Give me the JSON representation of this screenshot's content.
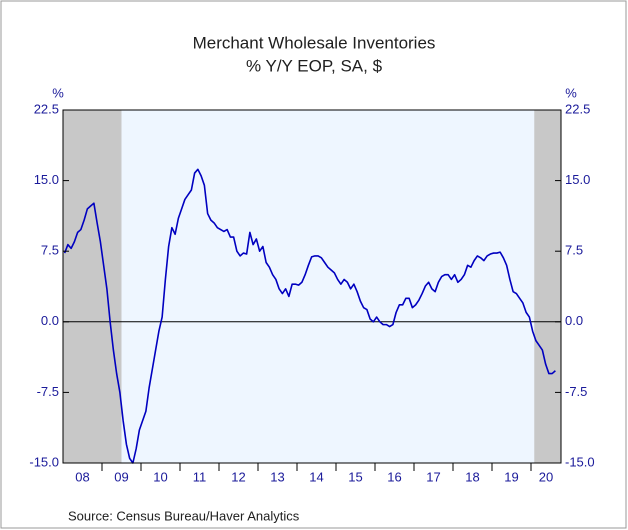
{
  "chart_data": {
    "type": "line",
    "title": "Merchant Wholesale Inventories",
    "subtitle": "% Y/Y   EOP, SA, $",
    "y_label": "%",
    "y2_label": "%",
    "source": "Source:  Census Bureau/Haver Analytics",
    "x_labels": [
      "08",
      "09",
      "10",
      "11",
      "12",
      "13",
      "14",
      "15",
      "16",
      "17",
      "18",
      "19",
      "20"
    ],
    "ylim": [
      -15,
      22.5
    ],
    "yticks": [
      22.5,
      {
        "value": 15,
        "label": "15.0"
      },
      7.5,
      {
        "value": 0,
        "label": "0.0"
      },
      -7.5,
      {
        "value": -15,
        "label": "-15.0"
      }
    ],
    "y2lim": [
      -15,
      22.5
    ],
    "y2ticks": [
      22.5,
      {
        "value": 15,
        "label": "15.0"
      },
      7.5,
      {
        "value": 0,
        "label": "0.0"
      },
      -7.5,
      {
        "value": -15,
        "label": "-15.0"
      }
    ],
    "series": [
      {
        "color": "#0000c0",
        "values": [
          7.3,
          8.2,
          7.8,
          8.5,
          9.5,
          9.8,
          10.8,
          12.0,
          12.3,
          12.6,
          10.5,
          8.5,
          6.0,
          3.5,
          0.0,
          -3.0,
          -5.5,
          -7.5,
          -10.5,
          -13.0,
          -14.5,
          -15.0,
          -13.5,
          -11.5,
          -10.5,
          -9.5,
          -7.0,
          -5.0,
          -3.0,
          -1.0,
          0.5,
          4.5,
          8.0,
          10.0,
          9.3,
          11.0,
          12.0,
          13.0,
          13.5,
          14.0,
          15.8,
          16.2,
          15.5,
          14.5,
          11.5,
          10.8,
          10.5,
          10.0,
          9.8,
          9.6,
          9.8,
          9.0,
          9.0,
          7.5,
          7.0,
          7.3,
          7.2,
          9.5,
          8.2,
          8.8,
          7.5,
          8.0,
          6.3,
          5.8,
          5.0,
          4.5,
          3.5,
          3.0,
          3.5,
          2.7,
          4.0,
          4.0,
          3.9,
          4.2,
          5.0,
          6.0,
          6.9,
          7.0,
          7.0,
          6.8,
          6.3,
          5.8,
          5.5,
          5.2,
          4.5,
          4.0,
          4.5,
          4.2,
          3.5,
          4.0,
          3.2,
          2.2,
          1.5,
          1.3,
          0.3,
          0.0,
          0.5,
          0.0,
          -0.3,
          -0.3,
          -0.5,
          -0.3,
          1.0,
          1.8,
          1.8,
          2.5,
          2.5,
          1.5,
          1.8,
          2.3,
          3.0,
          3.8,
          4.2,
          3.5,
          3.2,
          4.2,
          4.8,
          5.0,
          5.0,
          4.5,
          5.0,
          4.2,
          4.5,
          5.0,
          6.0,
          5.8,
          6.5,
          7.0,
          6.8,
          6.5,
          7.0,
          7.2,
          7.3,
          7.3,
          7.4,
          6.8,
          6.0,
          4.5,
          3.2,
          3.0,
          2.5,
          2.0,
          1.0,
          0.5,
          -1.0,
          -2.0,
          -2.5,
          -3.0,
          -4.5,
          -5.5,
          -5.5,
          -5.2
        ]
      }
    ]
  }
}
